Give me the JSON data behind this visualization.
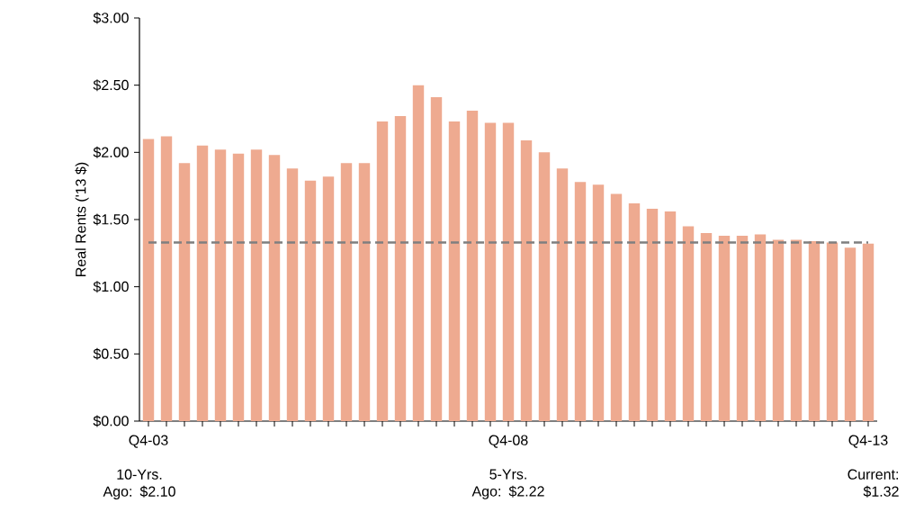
{
  "chart_data": {
    "type": "bar",
    "ylabel": "Real Rents ('13 $)",
    "categories": [
      "Q4-03",
      null,
      null,
      null,
      null,
      null,
      null,
      null,
      null,
      null,
      null,
      null,
      null,
      null,
      null,
      null,
      null,
      null,
      null,
      null,
      "Q4-08",
      null,
      null,
      null,
      null,
      null,
      null,
      null,
      null,
      null,
      null,
      null,
      null,
      null,
      null,
      null,
      null,
      null,
      null,
      null,
      "Q4-13"
    ],
    "values": [
      2.1,
      2.12,
      1.92,
      2.05,
      2.02,
      1.99,
      2.02,
      1.98,
      1.88,
      1.79,
      1.82,
      1.92,
      1.92,
      2.23,
      2.27,
      2.5,
      2.41,
      2.23,
      2.31,
      2.22,
      2.22,
      2.09,
      2.0,
      1.88,
      1.78,
      1.76,
      1.69,
      1.62,
      1.58,
      1.56,
      1.45,
      1.4,
      1.38,
      1.38,
      1.39,
      1.35,
      1.35,
      1.34,
      1.33,
      1.29,
      1.32
    ],
    "color": "#eeaa90",
    "ylim": [
      0,
      3
    ],
    "yticks": [
      {
        "value": 0,
        "label": "$0.00"
      },
      {
        "value": 0.5,
        "label": "$0.50"
      },
      {
        "value": 1,
        "label": "$1.00"
      },
      {
        "value": 1.5,
        "label": "$1.50"
      },
      {
        "value": 2,
        "label": "$2.00"
      },
      {
        "value": 2.5,
        "label": "$2.50"
      },
      {
        "value": 3,
        "label": "$3.00"
      }
    ],
    "grid": false,
    "ref_lines": [
      {
        "axis": "y",
        "value": 1.33,
        "color": "#7f7f7f",
        "line_style": "dashed"
      }
    ],
    "annotations": [
      "10-Yrs. Ago: $2.10",
      "5-Yrs. Ago: $2.22",
      "Current: $1.32"
    ]
  }
}
